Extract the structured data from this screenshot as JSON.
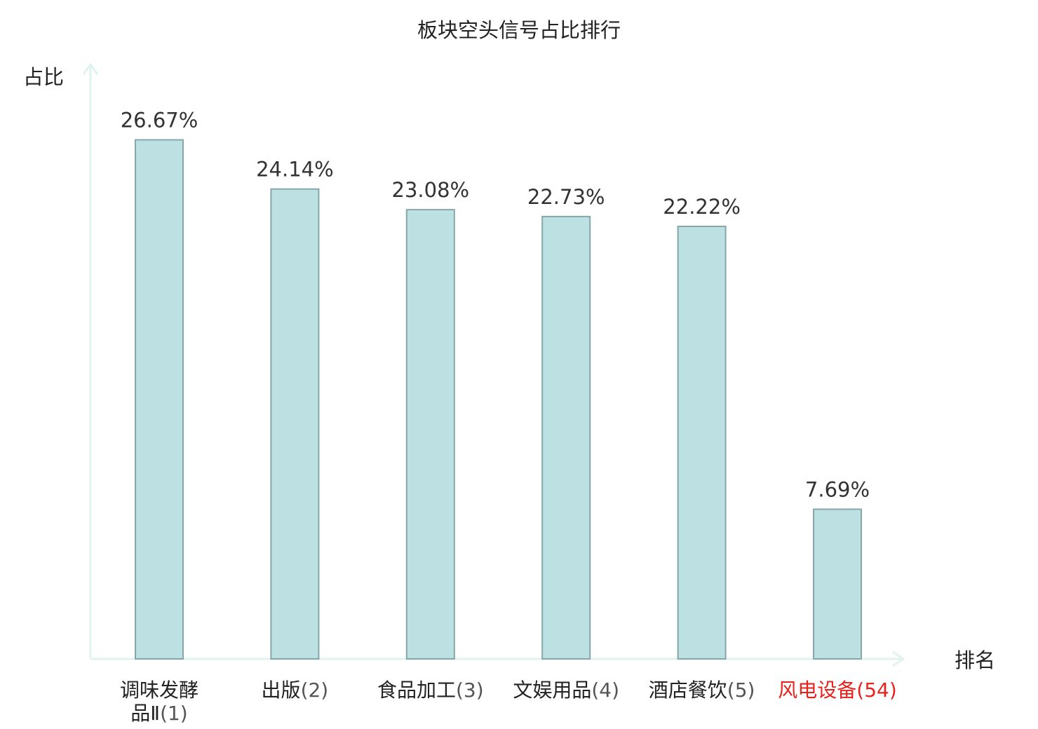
{
  "chart_data": {
    "type": "bar",
    "title": "板块空头信号占比排行",
    "ylabel": "占比",
    "xlabel": "排名",
    "categories": [
      {
        "name_lines": [
          "调味发酵",
          "品Ⅱ"
        ],
        "rank": "(1)",
        "highlight": false
      },
      {
        "name_lines": [
          "出版"
        ],
        "rank": "(2)",
        "highlight": false
      },
      {
        "name_lines": [
          "食品加工"
        ],
        "rank": "(3)",
        "highlight": false
      },
      {
        "name_lines": [
          "文娱用品"
        ],
        "rank": "(4)",
        "highlight": false
      },
      {
        "name_lines": [
          "酒店餐饮"
        ],
        "rank": "(5)",
        "highlight": false
      },
      {
        "name_lines": [
          "风电设备"
        ],
        "rank": "(54)",
        "highlight": true
      }
    ],
    "values": [
      26.67,
      24.14,
      23.08,
      22.73,
      22.22,
      7.69
    ],
    "value_labels": [
      "26.67%",
      "24.14%",
      "23.08%",
      "22.73%",
      "22.22%",
      "7.69%"
    ],
    "ylim": [
      0,
      30
    ],
    "grid": false,
    "colors": {
      "bar_fill": "#bde1e3",
      "bar_stroke": "#86a7a9",
      "axis": "#e0f3ef",
      "highlight": "#e8231e",
      "rank_text": "#555555",
      "text": "#222222"
    }
  }
}
